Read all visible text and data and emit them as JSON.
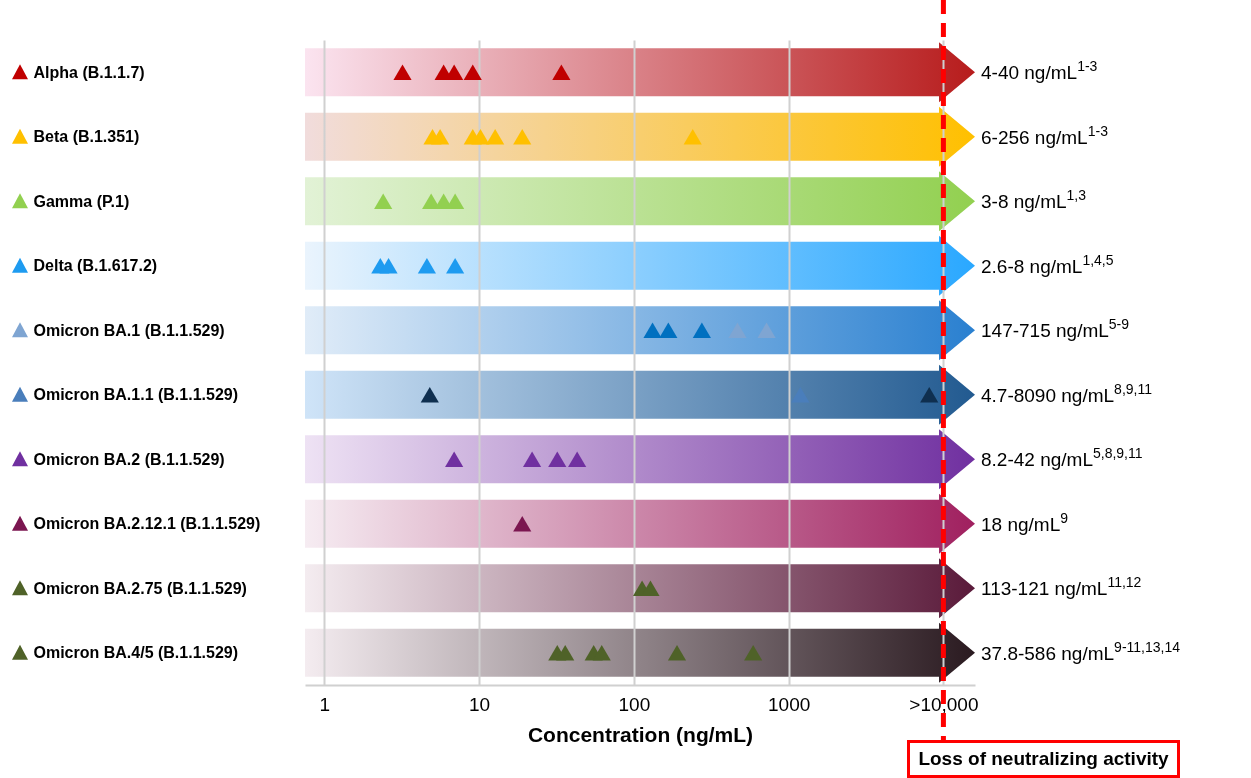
{
  "chart_data": {
    "type": "scatter",
    "orientation": "horizontal",
    "xlabel": "Concentration (ng/mL)",
    "categories": [
      "Alpha (B.1.1.7)",
      "Beta (B.1.351)",
      "Gamma (P.1)",
      "Delta (B.1.617.2)",
      "Omicron BA.1 (B.1.1.529)",
      "Omicron BA.1.1 (B.1.1.529)",
      "Omicron BA.2 (B.1.1.529)",
      "Omicron BA.2.12.1 (B.1.1.529)",
      "Omicron BA.2.75 (B.1.1.529)",
      "Omicron BA.4/5 (B.1.1.529)"
    ],
    "log": "x",
    "xlim": [
      0.75,
      16000
    ],
    "xticks": [
      1,
      10,
      100,
      1000,
      {
        "value": 10000,
        "label": ">10,000"
      }
    ],
    "grid": "x",
    "marker": "triangle",
    "series": [
      {
        "color": "#c00000",
        "x": [
          "Alpha (B.1.1.7)",
          "Alpha (B.1.1.7)",
          "Alpha (B.1.1.7)",
          "Alpha (B.1.1.7)",
          "Alpha (B.1.1.7)"
        ],
        "values": [
          3.2,
          5.9,
          6.9,
          9.1,
          34
        ]
      },
      {
        "color": "#ffc000",
        "x": [
          "Beta (B.1.351)",
          "Beta (B.1.351)",
          "Beta (B.1.351)",
          "Beta (B.1.351)",
          "Beta (B.1.351)",
          "Beta (B.1.351)",
          "Beta (B.1.351)"
        ],
        "values": [
          5,
          5.6,
          9.1,
          10.2,
          12.7,
          19,
          240
        ]
      },
      {
        "color": "#92d050",
        "x": [
          "Gamma (P.1)",
          "Gamma (P.1)",
          "Gamma (P.1)",
          "Gamma (P.1)"
        ],
        "values": [
          2.4,
          4.9,
          5.9,
          7
        ]
      },
      {
        "color": "#1e9bf0",
        "x": [
          "Delta (B.1.617.2)",
          "Delta (B.1.617.2)",
          "Delta (B.1.617.2)",
          "Delta (B.1.617.2)"
        ],
        "values": [
          2.3,
          2.6,
          4.6,
          7
        ]
      },
      {
        "color": "#7fa5d2",
        "colors": [
          "#0070c0",
          "#0070c0",
          "#0070c0",
          "#7fa5d2",
          "#7fa5d2"
        ],
        "x": [
          "Omicron BA.1 (B.1.1.529)",
          "Omicron BA.1 (B.1.1.529)",
          "Omicron BA.1 (B.1.1.529)",
          "Omicron BA.1 (B.1.1.529)",
          "Omicron BA.1 (B.1.1.529)"
        ],
        "values": [
          132,
          167,
          275,
          467,
          720
        ]
      },
      {
        "color": "#4a7ebb",
        "colors": [
          "#0f2f4f",
          "#4a7ebb",
          "#0f2f4f"
        ],
        "x": [
          "Omicron BA.1.1 (B.1.1.529)",
          "Omicron BA.1.1 (B.1.1.529)",
          "Omicron BA.1.1 (B.1.1.529)"
        ],
        "values": [
          4.8,
          1190,
          8100
        ]
      },
      {
        "color": "#7030a0",
        "x": [
          "Omicron BA.2 (B.1.1.529)",
          "Omicron BA.2 (B.1.1.529)",
          "Omicron BA.2 (B.1.1.529)",
          "Omicron BA.2 (B.1.1.529)"
        ],
        "values": [
          6.9,
          22,
          32,
          43
        ]
      },
      {
        "color": "#7b1650",
        "x": [
          "Omicron BA.2.12.1 (B.1.1.529)"
        ],
        "values": [
          19
        ]
      },
      {
        "color": "#4f6228",
        "x": [
          "Omicron BA.2.75 (B.1.1.529)",
          "Omicron BA.2.75 (B.1.1.529)"
        ],
        "values": [
          113,
          128
        ]
      },
      {
        "color": "#4f6228",
        "x": [
          "Omicron BA.4/5 (B.1.1.529)",
          "Omicron BA.4/5 (B.1.1.529)",
          "Omicron BA.4/5 (B.1.1.529)",
          "Omicron BA.4/5 (B.1.1.529)",
          "Omicron BA.4/5 (B.1.1.529)",
          "Omicron BA.4/5 (B.1.1.529)"
        ],
        "values": [
          32,
          36,
          55,
          62,
          190,
          590
        ]
      }
    ],
    "ref_lines": [
      {
        "axis": "x",
        "value": 10000,
        "label": "Loss of neutralizing activity",
        "color": "#ff0000",
        "line_style": "dashed"
      }
    ],
    "annotations": [
      "4-40 ng/mL$^{1-3}$",
      "6-256 ng/mL$^{1-3}$",
      "3-8 ng/mL$^{1,3}$",
      "2.6-8 ng/mL$^{1,4,5}$",
      "147-715 ng/mL$^{5-9}$",
      "4.7-8090 ng/mL$^{8,9,11}$",
      "8.2-42 ng/mL$^{5,8,9,11}$",
      "18 ng/mL$^{9}$",
      "113-121 ng/mL$^{11,12}$",
      "37.8-586 ng/mL$^{9-11,13,14}$"
    ]
  }
}
